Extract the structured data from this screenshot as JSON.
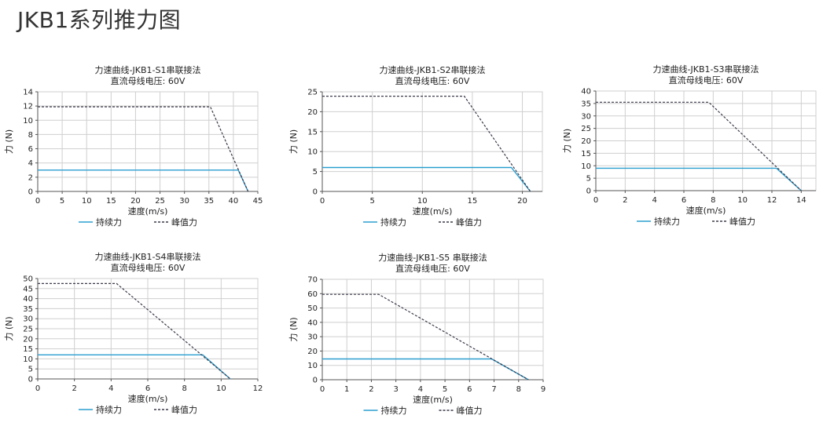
{
  "page": {
    "title": "JKB1系列推力图"
  },
  "colors": {
    "continuous": "#2a9fd0",
    "peak": "#3a3a4a",
    "grid": "#cfcfcf",
    "axis": "#555555"
  },
  "chart_data": [
    {
      "type": "line",
      "title": "力速曲线-JKB1-S1串联接法",
      "subtitle": "直流母线电压: 60V",
      "xlabel": "速度(m/s)",
      "ylabel": "力 (N)",
      "xlim": [
        0,
        45
      ],
      "ylim": [
        0,
        14
      ],
      "xticks": [
        "0",
        "5",
        "10",
        "15",
        "20",
        "25",
        "30",
        "35",
        "40",
        "45"
      ],
      "yticks": [
        "0",
        "2",
        "4",
        "6",
        "8",
        "10",
        "12",
        "14"
      ],
      "grid": true,
      "legend": "bottom",
      "series": [
        {
          "name": "持续力",
          "style": "solid",
          "x": [
            0,
            41,
            43
          ],
          "y": [
            3,
            3,
            0
          ]
        },
        {
          "name": "峰值力",
          "style": "dashed",
          "x": [
            0,
            35.3,
            43
          ],
          "y": [
            11.9,
            11.9,
            0
          ]
        }
      ]
    },
    {
      "type": "line",
      "title": "力速曲线-JKB1-S2串联接法",
      "subtitle": "直流母线电压: 60V",
      "xlabel": "速度(m/s)",
      "ylabel": "力 (N)",
      "xlim": [
        0,
        22
      ],
      "ylim": [
        0,
        25
      ],
      "xticks": [
        "0",
        "5",
        "10",
        "15",
        "20"
      ],
      "yticks": [
        "0",
        "5",
        "10",
        "15",
        "20",
        "25"
      ],
      "grid": true,
      "legend": "bottom",
      "series": [
        {
          "name": "持续力",
          "style": "solid",
          "x": [
            0,
            18.9,
            20.8
          ],
          "y": [
            6,
            6,
            0
          ]
        },
        {
          "name": "峰值力",
          "style": "dashed",
          "x": [
            0,
            14.2,
            20.8
          ],
          "y": [
            23.9,
            23.9,
            0
          ]
        }
      ]
    },
    {
      "type": "line",
      "title": "力速曲线-JKB1-S3串联接法",
      "subtitle": "直流母线电压: 60V",
      "xlabel": "速度(m/s)",
      "ylabel": "力 (N)",
      "xlim": [
        0,
        15
      ],
      "ylim": [
        0,
        40
      ],
      "xticks": [
        "0",
        "2",
        "4",
        "6",
        "8",
        "10",
        "12",
        "14"
      ],
      "yticks": [
        "0",
        "5",
        "10",
        "15",
        "20",
        "25",
        "30",
        "35",
        "40"
      ],
      "grid": true,
      "legend": "bottom",
      "series": [
        {
          "name": "持续力",
          "style": "solid",
          "x": [
            0,
            12.3,
            14
          ],
          "y": [
            9,
            9,
            0
          ]
        },
        {
          "name": "峰值力",
          "style": "dashed",
          "x": [
            0,
            7.7,
            14
          ],
          "y": [
            35.5,
            35.5,
            0
          ]
        }
      ]
    },
    {
      "type": "line",
      "title": "力速曲线-JKB1-S4串联接法",
      "subtitle": "直流母线电压: 60V",
      "xlabel": "速度(m/s)",
      "ylabel": "力 (N)",
      "xlim": [
        0,
        12
      ],
      "ylim": [
        0,
        50
      ],
      "xticks": [
        "0",
        "2",
        "4",
        "6",
        "8",
        "10",
        "12"
      ],
      "yticks": [
        "0",
        "5",
        "10",
        "15",
        "20",
        "25",
        "30",
        "35",
        "40",
        "45",
        "50"
      ],
      "grid": true,
      "legend": "bottom",
      "series": [
        {
          "name": "持续力",
          "style": "solid",
          "x": [
            0,
            9.0,
            10.5
          ],
          "y": [
            12,
            12,
            0
          ]
        },
        {
          "name": "峰值力",
          "style": "dashed",
          "x": [
            0,
            4.3,
            10.5
          ],
          "y": [
            47.5,
            47.5,
            0
          ]
        }
      ]
    },
    {
      "type": "line",
      "title": "力速曲线-JKB1-S5 串联接法",
      "subtitle": "直流母线电压: 60V",
      "xlabel": "速度(m/s)",
      "ylabel": "力 (N)",
      "xlim": [
        0,
        9
      ],
      "ylim": [
        0,
        70
      ],
      "xticks": [
        "0",
        "1",
        "2",
        "3",
        "4",
        "5",
        "6",
        "7",
        "8",
        "9"
      ],
      "yticks": [
        "0",
        "10",
        "20",
        "30",
        "40",
        "50",
        "60",
        "70"
      ],
      "grid": true,
      "legend": "bottom",
      "series": [
        {
          "name": "持续力",
          "style": "solid",
          "x": [
            0,
            6.9,
            8.4
          ],
          "y": [
            14.5,
            14.5,
            0
          ]
        },
        {
          "name": "峰值力",
          "style": "dashed",
          "x": [
            0,
            2.3,
            8.4
          ],
          "y": [
            59.5,
            59.5,
            0
          ]
        }
      ]
    }
  ]
}
